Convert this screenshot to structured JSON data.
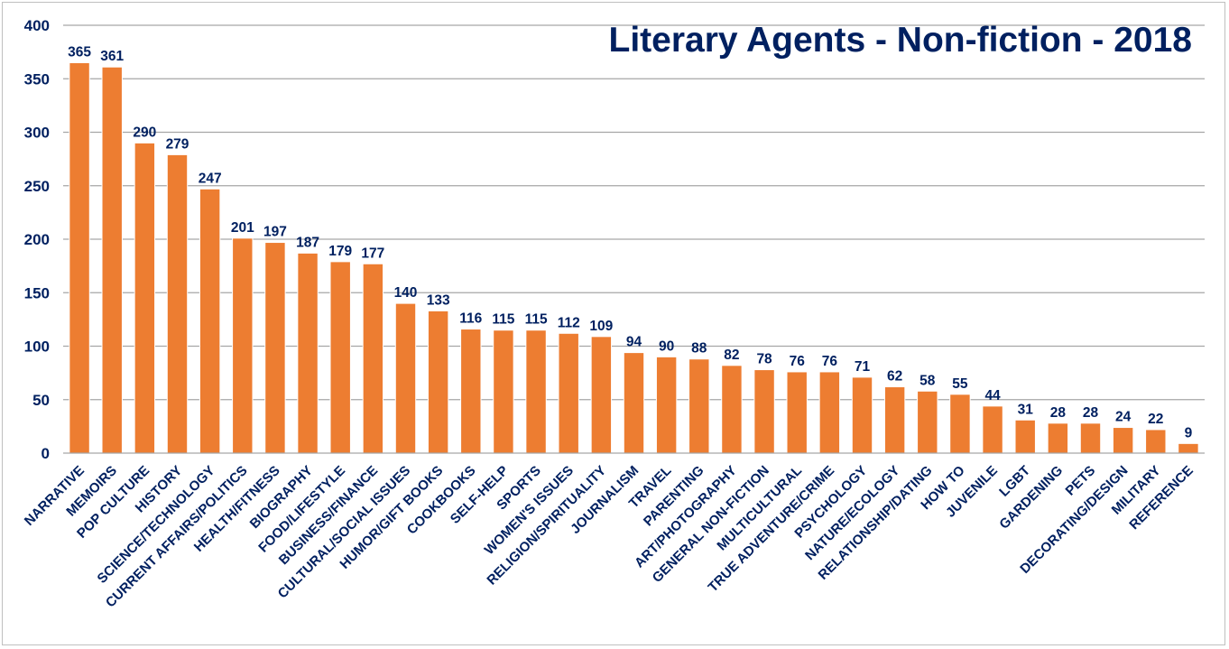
{
  "chart_data": {
    "type": "bar",
    "title": "Literary Agents - Non-fiction - 2018",
    "xlabel": "",
    "ylabel": "",
    "ylim": [
      0,
      400
    ],
    "yticks": [
      "0",
      "50",
      "100",
      "150",
      "200",
      "250",
      "300",
      "350",
      "400"
    ],
    "grid": true,
    "legend": "none",
    "categories": [
      "NARRATIVE",
      "MEMOIRS",
      "POP CULTURE",
      "HISTORY",
      "SCIENCE/TECHNOLOGY",
      "CURRENT AFFAIRS/POLITICS",
      "HEALTH/FITNESS",
      "BIOGRAPHY",
      "FOOD/LIFESTYLE",
      "BUSINESS/FINANCE",
      "CULTURAL/SOCIAL ISSUES",
      "HUMOR/GIFT BOOKS",
      "COOKBOOKS",
      "SELF-HELP",
      "SPORTS",
      "WOMEN'S ISSUES",
      "RELIGION/SPIRITUALITY",
      "JOURNALISM",
      "TRAVEL",
      "PARENTING",
      "ART/PHOTOGRAPHY",
      "GENERAL NON-FICTION",
      "MULTICULTURAL",
      "TRUE ADVENTURE/CRIME",
      "PSYCHOLOGY",
      "NATURE/ECOLOGY",
      "RELATIONSHIP/DATING",
      "HOW TO",
      "JUVENILE",
      "LGBT",
      "GARDENING",
      "PETS",
      "DECORATING/DESIGN",
      "MILITARY",
      "REFERENCE"
    ],
    "values": [
      365,
      361,
      290,
      279,
      247,
      201,
      197,
      187,
      179,
      177,
      140,
      133,
      116,
      115,
      115,
      112,
      109,
      94,
      90,
      88,
      82,
      78,
      76,
      76,
      71,
      62,
      58,
      55,
      44,
      31,
      28,
      28,
      24,
      22,
      9
    ],
    "colors": {
      "bar": "#ED7D31",
      "bar_edge": "#ffffff",
      "text": "#002060",
      "grid": "#A6A6A6",
      "axis": "#A6A6A6"
    }
  }
}
